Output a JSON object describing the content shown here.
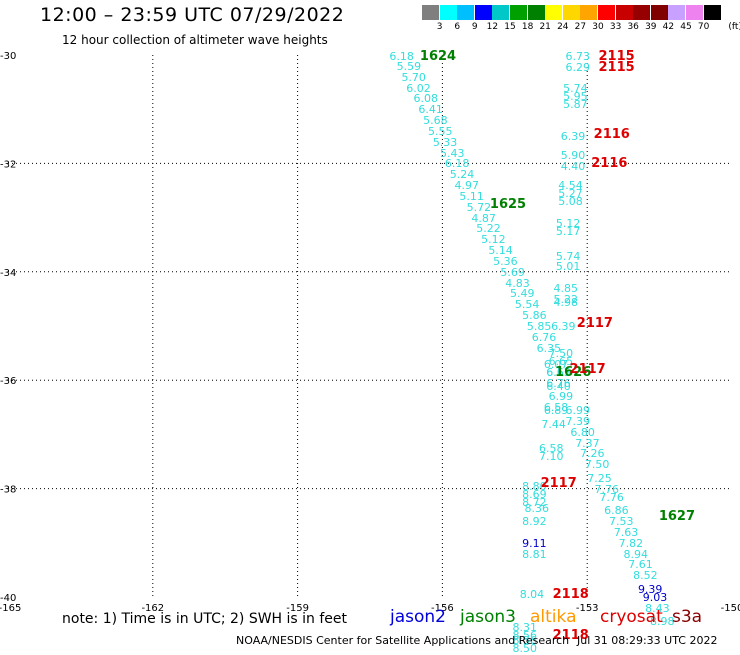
{
  "header": {
    "title": "12:00 – 23:59 UTC 07/29/2022",
    "subtitle": "12 hour collection of altimeter wave heights"
  },
  "legend": {
    "labels": [
      "3",
      "6",
      "9",
      "12",
      "15",
      "18",
      "21",
      "24",
      "27",
      "30",
      "33",
      "36",
      "39",
      "42",
      "45",
      "70"
    ],
    "unit": "(ft)",
    "colors": [
      "#7f7f7f",
      "#00ffff",
      "#00bfff",
      "#0000ff",
      "#00c8c8",
      "#00a000",
      "#008000",
      "#ffff00",
      "#ffd700",
      "#ffa500",
      "#ff0000",
      "#c80000",
      "#960000",
      "#800000",
      "#c8a0ff",
      "#ee82ee",
      "#000000"
    ]
  },
  "axes": {
    "x_ticks": [
      "-165",
      "-162",
      "-159",
      "-156",
      "-153",
      "-150"
    ],
    "y_ticks": [
      "-30",
      "-32",
      "-34",
      "-36",
      "-38",
      "-40"
    ]
  },
  "tracks": [
    {
      "id": "t1",
      "color": "#33dddd",
      "points": [
        {
          "lon": -156.85,
          "lat": -30.02,
          "v": "6.18"
        },
        {
          "lon": -156.7,
          "lat": -30.2,
          "v": "5.59"
        },
        {
          "lon": -156.6,
          "lat": -30.4,
          "v": "5.70"
        },
        {
          "lon": -156.5,
          "lat": -30.6,
          "v": "6.02"
        },
        {
          "lon": -156.35,
          "lat": -30.8,
          "v": "6.08"
        },
        {
          "lon": -156.25,
          "lat": -31.0,
          "v": "6.41"
        },
        {
          "lon": -156.15,
          "lat": -31.2,
          "v": "5.68"
        },
        {
          "lon": -156.05,
          "lat": -31.4,
          "v": "5.55"
        },
        {
          "lon": -155.95,
          "lat": -31.6,
          "v": "5.33"
        },
        {
          "lon": -155.8,
          "lat": -31.8,
          "v": "5.43"
        },
        {
          "lon": -155.7,
          "lat": -32.0,
          "v": "6.18"
        },
        {
          "lon": -155.6,
          "lat": -32.2,
          "v": "5.24"
        },
        {
          "lon": -155.5,
          "lat": -32.4,
          "v": "4.97"
        },
        {
          "lon": -155.4,
          "lat": -32.6,
          "v": "5.11"
        },
        {
          "lon": -155.25,
          "lat": -32.8,
          "v": "5.72"
        },
        {
          "lon": -155.15,
          "lat": -33.0,
          "v": "4.87"
        },
        {
          "lon": -155.05,
          "lat": -33.2,
          "v": "5.22"
        },
        {
          "lon": -154.95,
          "lat": -33.4,
          "v": "5.12"
        },
        {
          "lon": -154.8,
          "lat": -33.6,
          "v": "5.14"
        },
        {
          "lon": -154.7,
          "lat": -33.8,
          "v": "5.36"
        },
        {
          "lon": -154.55,
          "lat": -34.0,
          "v": "5.69"
        },
        {
          "lon": -154.45,
          "lat": -34.2,
          "v": "4.83"
        },
        {
          "lon": -154.35,
          "lat": -34.4,
          "v": "5.49"
        },
        {
          "lon": -154.25,
          "lat": -34.6,
          "v": "5.54"
        },
        {
          "lon": -154.1,
          "lat": -34.8,
          "v": "5.86"
        },
        {
          "lon": -154.0,
          "lat": -35.0,
          "v": "5.85"
        },
        {
          "lon": -153.9,
          "lat": -35.2,
          "v": "6.76"
        },
        {
          "lon": -153.8,
          "lat": -35.4,
          "v": "6.35"
        },
        {
          "lon": -153.65,
          "lat": -35.7,
          "v": "6.07"
        },
        {
          "lon": -153.6,
          "lat": -35.85,
          "v": "6.65"
        }
      ]
    },
    {
      "id": "t2",
      "color": "#33dddd",
      "points": [
        {
          "lon": -153.2,
          "lat": -30.02,
          "v": "6.73"
        },
        {
          "lon": -153.2,
          "lat": -30.22,
          "v": "6.29"
        },
        {
          "lon": -153.25,
          "lat": -30.6,
          "v": "5.74"
        },
        {
          "lon": -153.25,
          "lat": -30.75,
          "v": "5.95"
        },
        {
          "lon": -153.25,
          "lat": -30.9,
          "v": "5.87"
        },
        {
          "lon": -153.3,
          "lat": -31.5,
          "v": "6.39"
        },
        {
          "lon": -153.3,
          "lat": -31.85,
          "v": "5.90"
        },
        {
          "lon": -153.3,
          "lat": -32.05,
          "v": "4.40"
        },
        {
          "lon": -153.35,
          "lat": -32.4,
          "v": "4.54"
        },
        {
          "lon": -153.35,
          "lat": -32.55,
          "v": "5.27"
        },
        {
          "lon": -153.35,
          "lat": -32.7,
          "v": "5.08"
        },
        {
          "lon": -153.4,
          "lat": -33.1,
          "v": "5.12"
        },
        {
          "lon": -153.4,
          "lat": -33.25,
          "v": "5.17"
        },
        {
          "lon": -153.4,
          "lat": -33.7,
          "v": "5.74"
        },
        {
          "lon": -153.4,
          "lat": -33.9,
          "v": "5.01"
        },
        {
          "lon": -153.45,
          "lat": -34.3,
          "v": "4.85"
        },
        {
          "lon": -153.45,
          "lat": -34.5,
          "v": "5.22"
        },
        {
          "lon": -153.45,
          "lat": -34.55,
          "v": "4.98"
        },
        {
          "lon": -153.5,
          "lat": -35.0,
          "v": "6.39"
        },
        {
          "lon": -153.55,
          "lat": -35.5,
          "v": "7.50"
        },
        {
          "lon": -153.55,
          "lat": -35.65,
          "v": "6.65"
        },
        {
          "lon": -153.6,
          "lat": -35.85,
          "v": "6.55"
        },
        {
          "lon": -153.6,
          "lat": -36.05,
          "v": "6.76"
        },
        {
          "lon": -153.6,
          "lat": -36.1,
          "v": "6.40"
        },
        {
          "lon": -153.55,
          "lat": -36.3,
          "v": "6.99"
        },
        {
          "lon": -153.65,
          "lat": -36.5,
          "v": "6.58"
        },
        {
          "lon": -153.65,
          "lat": -36.55,
          "v": "6.89"
        },
        {
          "lon": -153.7,
          "lat": -36.8,
          "v": "7.44"
        },
        {
          "lon": -153.75,
          "lat": -37.25,
          "v": "6.58"
        },
        {
          "lon": -153.75,
          "lat": -37.4,
          "v": "7.10"
        }
      ]
    },
    {
      "id": "t3",
      "color": "#33dddd",
      "points": [
        {
          "lon": -153.2,
          "lat": -36.55,
          "v": "6.99"
        },
        {
          "lon": -153.2,
          "lat": -36.75,
          "v": "7.39"
        },
        {
          "lon": -153.1,
          "lat": -36.95,
          "v": "6.80"
        },
        {
          "lon": -153.0,
          "lat": -37.15,
          "v": "7.37"
        },
        {
          "lon": -152.9,
          "lat": -37.35,
          "v": "7.26"
        },
        {
          "lon": -152.8,
          "lat": -37.55,
          "v": "7.50"
        },
        {
          "lon": -152.75,
          "lat": -37.8,
          "v": "7.25"
        },
        {
          "lon": -152.6,
          "lat": -38.0,
          "v": "7.76"
        },
        {
          "lon": -152.5,
          "lat": -38.15,
          "v": "7.76"
        },
        {
          "lon": -152.4,
          "lat": -38.4,
          "v": "6.86"
        },
        {
          "lon": -152.3,
          "lat": -38.6,
          "v": "7.53"
        },
        {
          "lon": -152.2,
          "lat": -38.8,
          "v": "7.63"
        },
        {
          "lon": -152.1,
          "lat": -39.0,
          "v": "7.82"
        },
        {
          "lon": -152.0,
          "lat": -39.2,
          "v": "8.94"
        },
        {
          "lon": -151.9,
          "lat": -39.4,
          "v": "7.61"
        },
        {
          "lon": -151.8,
          "lat": -39.6,
          "v": "8.52"
        },
        {
          "lon": -151.55,
          "lat": -40.2,
          "v": "8.43"
        },
        {
          "lon": -151.45,
          "lat": -40.45,
          "v": "8.98"
        }
      ]
    },
    {
      "id": "t4",
      "color": "#0000cc",
      "points": [
        {
          "lon": -151.7,
          "lat": -39.85,
          "v": "9.39"
        },
        {
          "lon": -151.6,
          "lat": -40.0,
          "v": "9.03"
        },
        {
          "lon": -154.1,
          "lat": -39.0,
          "v": "9.11"
        }
      ]
    },
    {
      "id": "t5",
      "color": "#33dddd",
      "points": [
        {
          "lon": -154.1,
          "lat": -37.95,
          "v": "8.80"
        },
        {
          "lon": -154.1,
          "lat": -38.1,
          "v": "8.69"
        },
        {
          "lon": -154.1,
          "lat": -38.25,
          "v": "8.72"
        },
        {
          "lon": -154.05,
          "lat": -38.35,
          "v": "8.36"
        },
        {
          "lon": -154.1,
          "lat": -38.6,
          "v": "8.92"
        },
        {
          "lon": -154.1,
          "lat": -39.2,
          "v": "8.81"
        },
        {
          "lon": -154.15,
          "lat": -39.95,
          "v": "8.04"
        },
        {
          "lon": -154.3,
          "lat": -40.55,
          "v": "8.31"
        },
        {
          "lon": -154.3,
          "lat": -40.7,
          "v": "8.56"
        },
        {
          "lon": -154.3,
          "lat": -40.8,
          "v": "8.56"
        },
        {
          "lon": -154.3,
          "lat": -40.95,
          "v": "8.50"
        }
      ]
    }
  ],
  "time_labels": [
    {
      "lon": -156.3,
      "lat": -30.02,
      "t": "1624",
      "color": "#008000"
    },
    {
      "lon": -154.85,
      "lat": -32.75,
      "t": "1625",
      "color": "#008000"
    },
    {
      "lon": -153.5,
      "lat": -35.85,
      "t": "1626",
      "color": "#008000"
    },
    {
      "lon": -151.35,
      "lat": -38.5,
      "t": "1627",
      "color": "#008000"
    },
    {
      "lon": -152.6,
      "lat": -30.02,
      "t": "2115",
      "color": "#dd0000"
    },
    {
      "lon": -152.6,
      "lat": -30.22,
      "t": "2115",
      "color": "#dd0000"
    },
    {
      "lon": -152.7,
      "lat": -31.45,
      "t": "2116",
      "color": "#dd0000"
    },
    {
      "lon": -152.75,
      "lat": -32.0,
      "t": "2116",
      "color": "#dd0000"
    },
    {
      "lon": -153.05,
      "lat": -34.95,
      "t": "2117",
      "color": "#dd0000"
    },
    {
      "lon": -153.2,
      "lat": -35.8,
      "t": "2117",
      "color": "#dd0000"
    },
    {
      "lon": -153.8,
      "lat": -37.9,
      "t": "2117",
      "color": "#dd0000"
    },
    {
      "lon": -153.55,
      "lat": -39.95,
      "t": "2118",
      "color": "#dd0000"
    },
    {
      "lon": -153.55,
      "lat": -40.7,
      "t": "2118",
      "color": "#dd0000"
    }
  ],
  "footer": {
    "note": "note: 1) Time is in UTC; 2) SWH is in feet",
    "satellites": [
      {
        "name": "jason2",
        "color": "#0000dd"
      },
      {
        "name": "jason3",
        "color": "#008000"
      },
      {
        "name": "altika",
        "color": "#ff9900"
      },
      {
        "name": "cryosat",
        "color": "#dd0000"
      },
      {
        "name": "s3a",
        "color": "#880000"
      }
    ],
    "credit": "NOAA/NESDIS Center for Satellite Applications and Research",
    "timestamp": "Jul 31 08:29:33 UTC 2022"
  }
}
